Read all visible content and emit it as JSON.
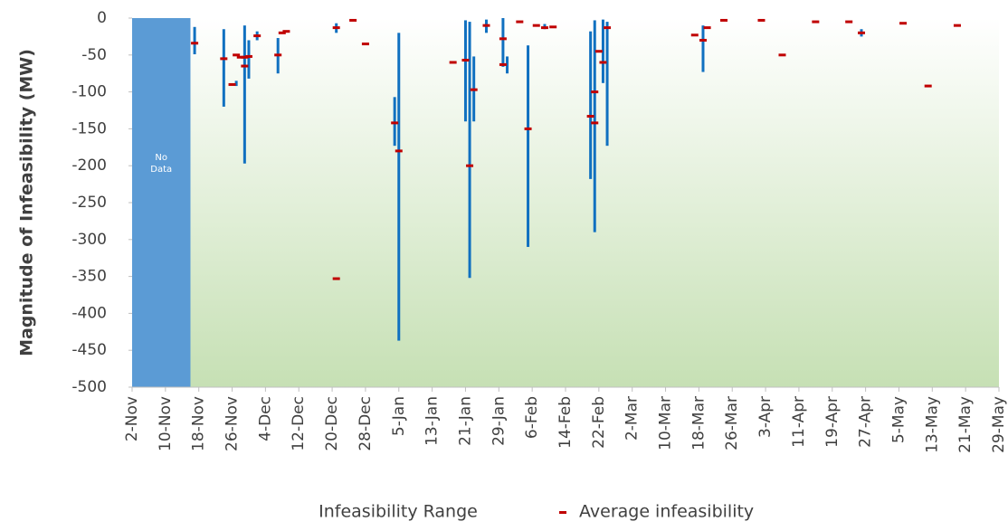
{
  "chart_data": {
    "type": "range",
    "y_label": "Magnitude of Infeasibility (MW)",
    "ylim": [
      -500,
      0
    ],
    "yticks": [
      0,
      -50,
      -100,
      -150,
      -200,
      -250,
      -300,
      -350,
      -400,
      -450,
      -500
    ],
    "xlim": [
      "2-Nov",
      "29-May"
    ],
    "xticks": [
      "2-Nov",
      "10-Nov",
      "18-Nov",
      "26-Nov",
      "4-Dec",
      "12-Dec",
      "20-Dec",
      "28-Dec",
      "5-Jan",
      "13-Jan",
      "21-Jan",
      "29-Jan",
      "6-Feb",
      "14-Feb",
      "22-Feb",
      "2-Mar",
      "10-Mar",
      "18-Mar",
      "26-Mar",
      "3-Apr",
      "11-Apr",
      "19-Apr",
      "27-Apr",
      "5-May",
      "13-May",
      "21-May",
      "29-May"
    ],
    "no_data": {
      "label": "No Data",
      "x": [
        "2-Nov",
        "16-Nov"
      ],
      "color": "#5b9bd5"
    },
    "series": [
      {
        "name": "Infeasibility Range",
        "color": "#1070c0",
        "x": [
          "17-Nov",
          "24-Nov",
          "27-Nov",
          "29-Nov",
          "30-Nov",
          "2-Dec",
          "7-Dec",
          "21-Dec",
          "4-Jan",
          "5-Jan",
          "21-Jan",
          "22-Jan",
          "23-Jan",
          "26-Jan",
          "30-Jan",
          "31-Jan",
          "5-Feb",
          "9-Feb",
          "20-Feb",
          "21-Feb",
          "23-Feb",
          "24-Feb",
          "19-Mar",
          "26-Apr"
        ],
        "high": [
          -12,
          -15,
          -85,
          -10,
          -30,
          -18,
          -27,
          -7,
          -107,
          -20,
          -3,
          -5,
          -52,
          -2,
          0,
          -52,
          -37,
          -8,
          -18,
          -3,
          -2,
          -5,
          -10,
          -15
        ],
        "low": [
          -49,
          -120,
          -92,
          -197,
          -82,
          -30,
          -75,
          -20,
          -173,
          -437,
          -140,
          -352,
          -140,
          -20,
          -66,
          -75,
          -310,
          -15,
          -218,
          -290,
          -88,
          -173,
          -73,
          -25
        ]
      },
      {
        "name": "Average infeasibility",
        "color": "#c00000",
        "x": [
          "17-Nov",
          "24-Nov",
          "26-Nov",
          "27-Nov",
          "28-Nov",
          "29-Nov",
          "29-Nov",
          "30-Nov",
          "2-Dec",
          "7-Dec",
          "8-Dec",
          "9-Dec",
          "21-Dec",
          "21-Dec",
          "25-Dec",
          "28-Dec",
          "4-Jan",
          "5-Jan",
          "18-Jan",
          "21-Jan",
          "22-Jan",
          "23-Jan",
          "26-Jan",
          "30-Jan",
          "30-Jan",
          "3-Feb",
          "5-Feb",
          "7-Feb",
          "9-Feb",
          "11-Feb",
          "20-Feb",
          "21-Feb",
          "21-Feb",
          "22-Feb",
          "23-Feb",
          "24-Feb",
          "17-Mar",
          "19-Mar",
          "20-Mar",
          "24-Mar",
          "2-Apr",
          "7-Apr",
          "15-Apr",
          "23-Apr",
          "26-Apr",
          "6-May",
          "12-May",
          "19-May"
        ],
        "values": [
          -34,
          -55,
          -90,
          -50,
          -53,
          -65,
          -53,
          -52,
          -24,
          -50,
          -20,
          -18,
          -13,
          -353,
          -3,
          -35,
          -142,
          -180,
          -60,
          -57,
          -200,
          -97,
          -10,
          -28,
          -63,
          -5,
          -150,
          -10,
          -13,
          -12,
          -133,
          -100,
          -142,
          -45,
          -60,
          -13,
          -23,
          -30,
          -13,
          -3,
          -3,
          -50,
          -5,
          -5,
          -20,
          -7,
          -92,
          -10
        ]
      }
    ]
  }
}
